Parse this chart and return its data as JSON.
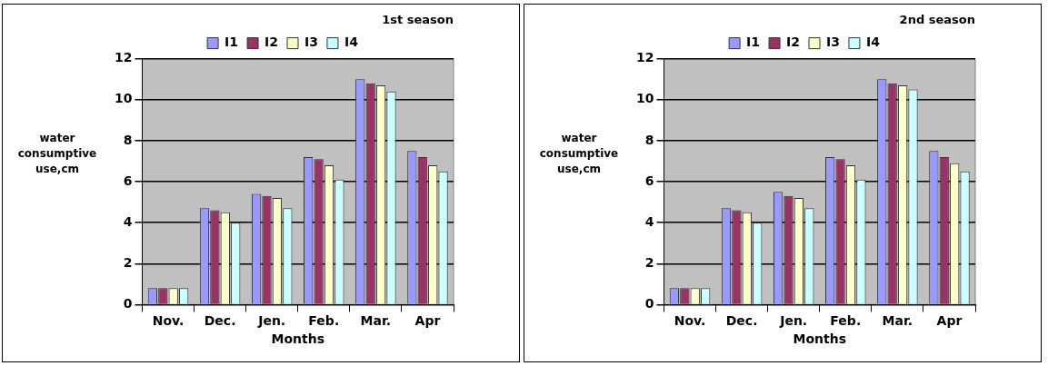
{
  "chart_data": [
    {
      "type": "bar",
      "title": "1st season",
      "xlabel": "Months",
      "ylabel": "water consumptive use,cm",
      "categories": [
        "Nov.",
        "Dec.",
        "Jen.",
        "Feb.",
        "Mar.",
        "Apr"
      ],
      "series": [
        {
          "name": "I1",
          "color": "#9999ff",
          "values": [
            0.8,
            4.7,
            5.4,
            7.2,
            11.0,
            7.5
          ]
        },
        {
          "name": "I2",
          "color": "#993366",
          "values": [
            0.8,
            4.6,
            5.3,
            7.1,
            10.8,
            7.2
          ]
        },
        {
          "name": "I3",
          "color": "#ffffcc",
          "values": [
            0.8,
            4.5,
            5.2,
            6.8,
            10.7,
            6.8
          ]
        },
        {
          "name": "I4",
          "color": "#ccffff",
          "values": [
            0.8,
            4.0,
            4.7,
            6.1,
            10.4,
            6.5
          ]
        }
      ],
      "ylim": [
        0,
        12
      ],
      "yticks": [
        0,
        2,
        4,
        6,
        8,
        10,
        12
      ],
      "grid": "y",
      "legend": "top"
    },
    {
      "type": "bar",
      "title": "2nd season",
      "xlabel": "Months",
      "ylabel": "water consumptive use,cm",
      "categories": [
        "Nov.",
        "Dec.",
        "Jen.",
        "Feb.",
        "Mar.",
        "Apr"
      ],
      "series": [
        {
          "name": "I1",
          "color": "#9999ff",
          "values": [
            0.8,
            4.7,
            5.5,
            7.2,
            11.0,
            7.5
          ]
        },
        {
          "name": "I2",
          "color": "#993366",
          "values": [
            0.8,
            4.6,
            5.3,
            7.1,
            10.8,
            7.2
          ]
        },
        {
          "name": "I3",
          "color": "#ffffcc",
          "values": [
            0.8,
            4.5,
            5.2,
            6.8,
            10.7,
            6.9
          ]
        },
        {
          "name": "I4",
          "color": "#ccffff",
          "values": [
            0.8,
            4.0,
            4.7,
            6.1,
            10.5,
            6.5
          ]
        }
      ],
      "ylim": [
        0,
        12
      ],
      "yticks": [
        0,
        2,
        4,
        6,
        8,
        10,
        12
      ],
      "grid": "y",
      "legend": "top"
    }
  ]
}
